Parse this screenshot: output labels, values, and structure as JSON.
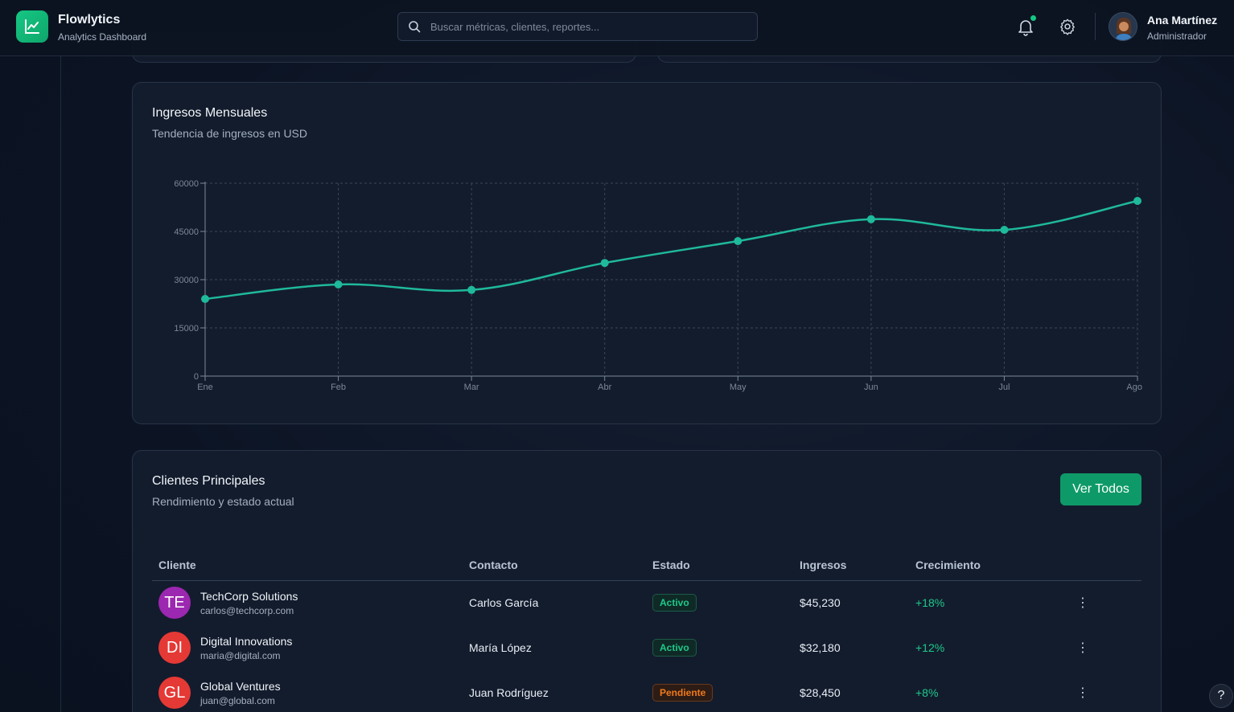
{
  "app": {
    "name": "Flowlytics",
    "subtitle": "Analytics Dashboard",
    "accent": "#16c784"
  },
  "search": {
    "placeholder": "Buscar métricas, clientes, reportes..."
  },
  "header": {
    "bell_icon": "bell-icon",
    "settings_icon": "gear-icon",
    "notification_dot": true
  },
  "user": {
    "name": "Ana Martínez",
    "role": "Administrador"
  },
  "revenue_card": {
    "title": "Ingresos Mensuales",
    "subtitle": "Tendencia de ingresos en USD"
  },
  "chart_data": {
    "type": "line",
    "title": "Ingresos Mensuales",
    "subtitle": "Tendencia de ingresos en USD",
    "categories": [
      "Ene",
      "Feb",
      "Mar",
      "Abr",
      "May",
      "Jun",
      "Jul",
      "Ago"
    ],
    "series": [
      {
        "values": [
          24000,
          28500,
          26800,
          35200,
          42000,
          48800,
          45500,
          54500
        ],
        "color": "#1fb99c"
      }
    ],
    "yticks": [
      "0",
      "15000",
      "30000",
      "45000",
      "60000"
    ],
    "ylim": [
      0,
      60000
    ],
    "grid": true
  },
  "clients_card": {
    "title": "Clientes Principales",
    "subtitle": "Rendimiento y estado actual",
    "view_all": "Ver Todos",
    "columns": [
      "Cliente",
      "Contacto",
      "Estado",
      "Ingresos",
      "Crecimiento"
    ],
    "rows": [
      {
        "initials": "TE",
        "name": "TechCorp Solutions",
        "email": "carlos@techcorp.com",
        "contact": "Carlos García",
        "status": "Activo",
        "status_type": "active",
        "revenue": "$45,230",
        "growth": "+18%",
        "avatar_color": "#9c27b0"
      },
      {
        "initials": "DI",
        "name": "Digital Innovations",
        "email": "maria@digital.com",
        "contact": "María López",
        "status": "Activo",
        "status_type": "active",
        "revenue": "$32,180",
        "growth": "+12%",
        "avatar_color": "#e53935"
      },
      {
        "initials": "GL",
        "name": "Global Ventures",
        "email": "juan@global.com",
        "contact": "Juan Rodríguez",
        "status": "Pendiente",
        "status_type": "pending",
        "revenue": "$28,450",
        "growth": "+8%",
        "avatar_color": "#e53935"
      }
    ],
    "row_menu_icon": "kebab-menu-icon"
  },
  "help": {
    "label": "?"
  }
}
